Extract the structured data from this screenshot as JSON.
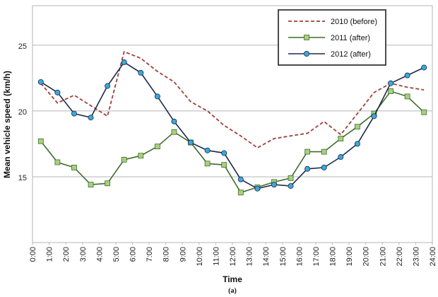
{
  "chart_data": {
    "type": "line",
    "xlabel": "Time",
    "ylabel": "Mean vehicle speed (km/h)",
    "caption": "(a)",
    "xlim": [
      0,
      24
    ],
    "ylim": [
      10,
      28
    ],
    "grid": "horizontal",
    "legend_position": "top-right",
    "x_tick_labels": [
      "0:00",
      "1:00",
      "2:00",
      "3:00",
      "4:00",
      "5:00",
      "6:00",
      "7:00",
      "8:00",
      "9:00",
      "10:00",
      "11:00",
      "12:00",
      "13:00",
      "14:00",
      "15:00",
      "16:00",
      "17:00",
      "18:00",
      "19:00",
      "20:00",
      "21:00",
      "22:00",
      "23:00",
      "24:00"
    ],
    "y_ticks": [
      15,
      20,
      25
    ],
    "x": [
      0.5,
      1.5,
      2.5,
      3.5,
      4.5,
      5.5,
      6.5,
      7.5,
      8.5,
      9.5,
      10.5,
      11.5,
      12.5,
      13.5,
      14.5,
      15.5,
      16.5,
      17.5,
      18.5,
      19.5,
      20.5,
      21.5,
      22.5,
      23.5
    ],
    "series": [
      {
        "name": "2010 (before)",
        "color": "#a0403a",
        "style": "dashed",
        "marker": "none",
        "values": [
          22.1,
          20.6,
          21.2,
          20.4,
          19.6,
          24.5,
          24.0,
          23.0,
          22.2,
          20.7,
          20.0,
          18.9,
          18.1,
          17.2,
          17.9,
          18.1,
          18.3,
          19.2,
          18.2,
          19.8,
          21.4,
          22.1,
          21.8,
          21.6
        ]
      },
      {
        "name": "2011 (after)",
        "color": "#3d6b2e",
        "style": "solid",
        "marker": "square",
        "marker_fill": "#a9cf7f",
        "values": [
          17.7,
          16.1,
          15.7,
          14.4,
          14.5,
          16.3,
          16.6,
          17.3,
          18.4,
          17.6,
          16.0,
          15.9,
          13.8,
          14.2,
          14.6,
          14.9,
          16.9,
          16.9,
          17.9,
          18.8,
          19.8,
          21.5,
          21.1,
          19.9
        ]
      },
      {
        "name": "2012 (after)",
        "color": "#1b2a4a",
        "style": "solid",
        "marker": "circle",
        "marker_fill": "#3aa9d9",
        "values": [
          22.2,
          21.4,
          19.8,
          19.5,
          21.9,
          23.7,
          22.9,
          21.1,
          19.2,
          17.6,
          17.0,
          16.8,
          14.8,
          14.1,
          14.4,
          14.3,
          15.6,
          15.7,
          16.5,
          17.5,
          19.6,
          22.1,
          22.7,
          23.3
        ]
      }
    ]
  }
}
